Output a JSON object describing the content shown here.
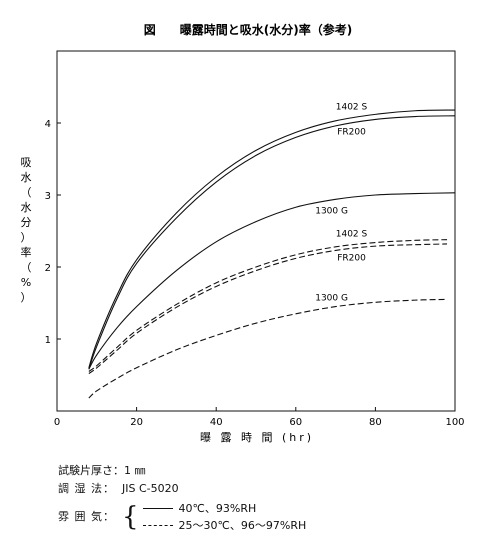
{
  "chart_data": {
    "type": "line",
    "title": "図　　曝露時間と吸水(水分)率（参考)",
    "xlabel": "曝 露 時 間 (hr)",
    "ylabel": "吸水（水分）率（%）",
    "xlim": [
      0,
      100
    ],
    "ylim": [
      0,
      5
    ],
    "xticks": [
      0,
      20,
      40,
      60,
      80,
      100
    ],
    "yticks": [
      1,
      2,
      3,
      4
    ],
    "grid": false,
    "series": [
      {
        "name": "1402 S",
        "style": "solid",
        "x": [
          8,
          10,
          15,
          20,
          30,
          40,
          50,
          60,
          70,
          80,
          90,
          100
        ],
        "y": [
          0.6,
          0.95,
          1.6,
          2.1,
          2.75,
          3.25,
          3.62,
          3.87,
          4.03,
          4.12,
          4.17,
          4.18
        ]
      },
      {
        "name": "FR200",
        "style": "solid",
        "x": [
          8,
          10,
          15,
          20,
          30,
          40,
          50,
          60,
          70,
          80,
          90,
          100
        ],
        "y": [
          0.58,
          0.9,
          1.55,
          2.05,
          2.68,
          3.18,
          3.55,
          3.8,
          3.96,
          4.05,
          4.09,
          4.1
        ]
      },
      {
        "name": "1300 G",
        "style": "solid",
        "x": [
          8,
          10,
          15,
          20,
          30,
          40,
          50,
          60,
          70,
          80,
          90,
          100
        ],
        "y": [
          0.58,
          0.78,
          1.15,
          1.45,
          1.95,
          2.35,
          2.63,
          2.83,
          2.94,
          3.0,
          3.02,
          3.03
        ]
      },
      {
        "name": "1402 S",
        "style": "dashed",
        "x": [
          8,
          10,
          15,
          20,
          30,
          40,
          50,
          60,
          70,
          80,
          90,
          98
        ],
        "y": [
          0.55,
          0.63,
          0.88,
          1.12,
          1.48,
          1.78,
          2.0,
          2.17,
          2.28,
          2.34,
          2.37,
          2.38
        ]
      },
      {
        "name": "FR200",
        "style": "dashed",
        "x": [
          8,
          10,
          15,
          20,
          30,
          40,
          50,
          60,
          70,
          80,
          90,
          98
        ],
        "y": [
          0.52,
          0.6,
          0.84,
          1.08,
          1.44,
          1.73,
          1.95,
          2.12,
          2.23,
          2.29,
          2.31,
          2.32
        ]
      },
      {
        "name": "1300 G",
        "style": "dashed",
        "x": [
          8,
          10,
          15,
          20,
          30,
          40,
          50,
          60,
          70,
          80,
          90,
          98
        ],
        "y": [
          0.18,
          0.28,
          0.45,
          0.6,
          0.85,
          1.05,
          1.22,
          1.35,
          1.45,
          1.51,
          1.54,
          1.55
        ]
      }
    ]
  },
  "notes": {
    "thickness_label": "試験片厚さ：",
    "thickness_value": "1 ㎜",
    "conditioning_label": "調 湿 法：",
    "conditioning_value": "JIS C-5020",
    "atmosphere_label": "雰 囲 気：",
    "conditions": [
      {
        "style": "solid",
        "text": "40℃、93%RH"
      },
      {
        "style": "dashed",
        "text": "25～30℃、96～97%RH"
      }
    ]
  }
}
